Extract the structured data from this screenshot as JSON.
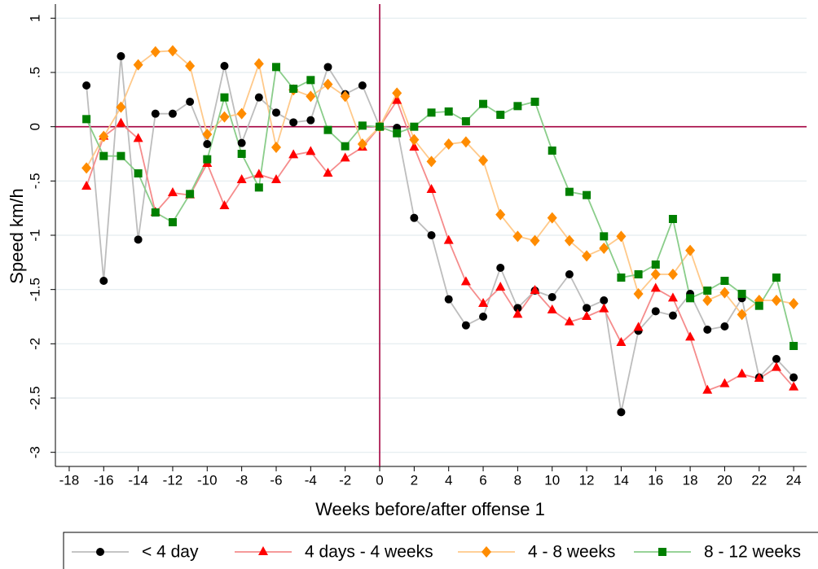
{
  "chart_data": {
    "type": "line",
    "xlabel": "Weeks before/after offense 1",
    "ylabel": "Speed km/h",
    "x": [
      -17,
      -16,
      -15,
      -14,
      -13,
      -12,
      -11,
      -10,
      -9,
      -8,
      -7,
      -6,
      -5,
      -4,
      -3,
      -2,
      -1,
      0,
      1,
      2,
      3,
      4,
      5,
      6,
      7,
      8,
      9,
      10,
      11,
      12,
      13,
      14,
      15,
      16,
      17,
      18,
      19,
      20,
      21,
      22,
      23,
      24
    ],
    "series": [
      {
        "name": "< 4 day",
        "color": "#000000",
        "line_color": "#bdbdbd",
        "marker": "circle",
        "values": [
          0.38,
          -1.42,
          0.65,
          -1.04,
          0.12,
          0.12,
          0.23,
          -0.16,
          0.56,
          -0.15,
          0.27,
          0.13,
          0.04,
          0.06,
          0.55,
          0.3,
          0.38,
          0,
          -0.01,
          -0.84,
          -1.0,
          -1.59,
          -1.83,
          -1.75,
          -1.3,
          -1.67,
          -1.51,
          -1.57,
          -1.36,
          -1.67,
          -1.6,
          -2.63,
          -1.88,
          -1.7,
          -1.74,
          -1.54,
          -1.87,
          -1.84,
          -1.58,
          -2.31,
          -2.14,
          -2.31
        ]
      },
      {
        "name": "4 days - 4 weeks",
        "color": "#ff0000",
        "line_color": "#f58c8c",
        "marker": "triangle",
        "values": [
          -0.55,
          -0.09,
          0.03,
          -0.11,
          -0.79,
          -0.61,
          -0.63,
          -0.34,
          -0.73,
          -0.49,
          -0.44,
          -0.49,
          -0.26,
          -0.23,
          -0.43,
          -0.29,
          -0.19,
          0,
          0.24,
          -0.19,
          -0.58,
          -1.05,
          -1.43,
          -1.63,
          -1.48,
          -1.73,
          -1.51,
          -1.69,
          -1.8,
          -1.75,
          -1.68,
          -1.99,
          -1.85,
          -1.49,
          -1.58,
          -1.94,
          -2.43,
          -2.37,
          -2.28,
          -2.32,
          -2.22,
          -2.4
        ]
      },
      {
        "name": "4 - 8 weeks",
        "color": "#ff8c00",
        "line_color": "#ffc98a",
        "marker": "diamond",
        "values": [
          -0.38,
          -0.09,
          0.18,
          0.57,
          0.69,
          0.7,
          0.56,
          -0.07,
          0.09,
          0.12,
          0.58,
          -0.19,
          0.34,
          0.28,
          0.39,
          0.28,
          -0.16,
          0,
          0.31,
          -0.12,
          -0.32,
          -0.16,
          -0.14,
          -0.31,
          -0.81,
          -1.01,
          -1.05,
          -0.84,
          -1.05,
          -1.19,
          -1.12,
          -1.01,
          -1.54,
          -1.36,
          -1.36,
          -1.14,
          -1.6,
          -1.53,
          -1.73,
          -1.6,
          -1.6,
          -1.63
        ]
      },
      {
        "name": "8 - 12 weeks",
        "color": "#008000",
        "line_color": "#8acd8a",
        "marker": "square",
        "values": [
          0.07,
          -0.27,
          -0.27,
          -0.43,
          -0.79,
          -0.88,
          -0.62,
          -0.3,
          0.27,
          -0.25,
          -0.56,
          0.55,
          0.35,
          0.43,
          -0.03,
          -0.18,
          0.01,
          0,
          -0.06,
          0.0,
          0.13,
          0.14,
          0.05,
          0.21,
          0.11,
          0.19,
          0.23,
          -0.22,
          -0.6,
          -0.63,
          -1.01,
          -1.39,
          -1.36,
          -1.27,
          -0.85,
          -1.58,
          -1.51,
          -1.42,
          -1.54,
          -1.65,
          -1.39,
          -2.02
        ]
      }
    ],
    "xlim": [
      -18.8,
      24.75
    ],
    "ylim": [
      -3.13,
      1.13
    ],
    "xticks": [
      -18,
      -16,
      -14,
      -12,
      -10,
      -8,
      -6,
      -4,
      -2,
      0,
      2,
      4,
      6,
      8,
      10,
      12,
      14,
      16,
      18,
      20,
      22,
      24
    ],
    "yticks": [
      1,
      {
        "value": 0.5,
        "label": ".5"
      },
      0,
      {
        "value": -0.5,
        "label": "-.5"
      },
      -1,
      {
        "value": -1.5,
        "label": "-1.5"
      },
      -2,
      {
        "value": -2.5,
        "label": "-2.5"
      },
      -3
    ],
    "grid": true,
    "reference_lines": {
      "x": 0,
      "y": 0,
      "color": "#a3003f"
    },
    "legend": "bottom"
  }
}
